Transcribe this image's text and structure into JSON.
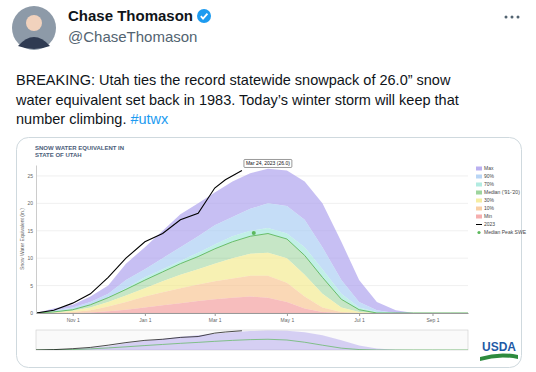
{
  "tweet": {
    "author": "Chase Thomason",
    "handle": "@ChaseThomason",
    "text_lines": [
      "BREAKING: Utah ties the record statewide snowpack of 26.0” snow",
      "water equivalent set back in 1983. Today’s winter storm will keep that",
      "number climbing."
    ],
    "hashtag": "#utwx",
    "logo": "USDA"
  },
  "chart_data": {
    "type": "area",
    "title": "SNOW WATER EQUIVALENT IN",
    "subtitle": "STATE OF UTAH",
    "ylabel": "Snow Water Equivalent (in.)",
    "x": [
      0,
      15,
      31,
      46,
      61,
      76,
      92,
      107,
      122,
      137,
      151,
      166,
      181,
      196,
      212,
      227,
      242,
      258,
      273,
      288,
      304,
      319,
      335,
      350,
      365
    ],
    "xlim": [
      0,
      365
    ],
    "xticks": [
      {
        "value": 31,
        "label": "Nov 1"
      },
      {
        "value": 92,
        "label": "Jan 1"
      },
      {
        "value": 151,
        "label": "Mar 1"
      },
      {
        "value": 212,
        "label": "May 1"
      },
      {
        "value": 273,
        "label": "Jul 1"
      },
      {
        "value": 335,
        "label": "Sep 1"
      }
    ],
    "ylim": [
      0,
      27
    ],
    "yticks": [
      0,
      5,
      10,
      15,
      20,
      25
    ],
    "grid": true,
    "legend": "right",
    "series": [
      {
        "name": "Max",
        "type": "area",
        "color": "#a99cec",
        "values": [
          0,
          0.8,
          1.5,
          3,
          5,
          9,
          12,
          15,
          18,
          20,
          22,
          24,
          25.5,
          26.3,
          26,
          24,
          20,
          13,
          6,
          2,
          0.5,
          0,
          0,
          0,
          0
        ]
      },
      {
        "name": "90%",
        "type": "area",
        "color": "#a6cbf3",
        "values": [
          0,
          0.5,
          1,
          2,
          3.5,
          6,
          8,
          10,
          12,
          14,
          16,
          17.5,
          19,
          20,
          19.5,
          17,
          12,
          6,
          2,
          0.5,
          0,
          0,
          0,
          0,
          0
        ]
      },
      {
        "name": "70%",
        "type": "area",
        "color": "#9fe6da",
        "values": [
          0,
          0.3,
          0.7,
          1.5,
          2.8,
          4.5,
          6.5,
          8,
          9.5,
          11,
          12.5,
          14,
          15,
          15.5,
          14.5,
          12,
          8,
          3.5,
          1,
          0.2,
          0,
          0,
          0,
          0,
          0
        ]
      },
      {
        "name": "Median ('91-'20)",
        "type": "area",
        "color": "#5cb85c",
        "line_style": "solid",
        "values": [
          0,
          0.2,
          0.6,
          1.5,
          2.8,
          4.3,
          6,
          7.5,
          9,
          10.3,
          11.7,
          13,
          14,
          14.5,
          13.5,
          10.5,
          6.5,
          2.5,
          0.6,
          0,
          0,
          0,
          0,
          0,
          0
        ]
      },
      {
        "name": "30%",
        "type": "area",
        "color": "#f3e98a",
        "values": [
          0,
          0.1,
          0.4,
          1,
          2,
          3.2,
          4.5,
          5.8,
          7,
          8,
          9,
          10,
          10.8,
          11,
          10,
          7,
          3.5,
          1,
          0.2,
          0,
          0,
          0,
          0,
          0,
          0
        ]
      },
      {
        "name": "10%",
        "type": "area",
        "color": "#f8c38f",
        "values": [
          0,
          0,
          0.2,
          0.5,
          1.2,
          2,
          3,
          3.8,
          4.5,
          5.2,
          5.8,
          6.3,
          6.8,
          6.8,
          5.5,
          3,
          1,
          0.2,
          0,
          0,
          0,
          0,
          0,
          0,
          0
        ]
      },
      {
        "name": "Min",
        "type": "area",
        "color": "#f29a9a",
        "values": [
          0,
          0,
          0,
          0.1,
          0.3,
          0.6,
          1,
          1.4,
          1.8,
          2.2,
          2.5,
          2.8,
          3,
          2.8,
          2,
          0.8,
          0.2,
          0,
          0,
          0,
          0,
          0,
          0,
          0,
          0
        ]
      },
      {
        "name": "2023",
        "type": "line",
        "color": "#000000",
        "line_style": "solid",
        "x": [
          0,
          15,
          31,
          46,
          61,
          76,
          92,
          107,
          122,
          137,
          151,
          160,
          174
        ],
        "values": [
          0,
          0.5,
          1.8,
          3.5,
          6.5,
          10,
          13,
          14.5,
          17,
          18.2,
          22.8,
          24.3,
          26.0
        ]
      },
      {
        "name": "Median Peak SWE",
        "type": "scatter",
        "color": "#5cb85c",
        "marker": "circle",
        "x": [
          184
        ],
        "values": [
          14.6
        ]
      }
    ],
    "annotations": [
      {
        "text": "Mar 24, 2023 (26.0)"
      }
    ]
  }
}
